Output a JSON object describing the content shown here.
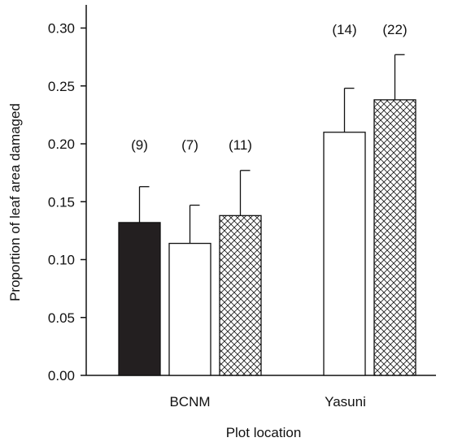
{
  "chart_data": {
    "type": "bar",
    "xlabel": "Plot location",
    "ylabel": "Proportion of leaf area damaged",
    "ylim": [
      0,
      0.32
    ],
    "yticks": [
      "0.00",
      "0.05",
      "0.10",
      "0.15",
      "0.20",
      "0.25",
      "0.30"
    ],
    "categories": [
      "BCNM",
      "Yasuni"
    ],
    "bars": [
      {
        "category": "BCNM",
        "fill": "solid",
        "color": "#231f20",
        "value": 0.132,
        "error": 0.031,
        "n_label": "(9)"
      },
      {
        "category": "BCNM",
        "fill": "open",
        "color": "#ffffff",
        "value": 0.114,
        "error": 0.033,
        "n_label": "(7)"
      },
      {
        "category": "BCNM",
        "fill": "crosshatch",
        "color": "#ffffff",
        "value": 0.138,
        "error": 0.039,
        "n_label": "(11)"
      },
      {
        "category": "Yasuni",
        "fill": "open",
        "color": "#ffffff",
        "value": 0.21,
        "error": 0.038,
        "n_label": "(14)"
      },
      {
        "category": "Yasuni",
        "fill": "crosshatch",
        "color": "#ffffff",
        "value": 0.238,
        "error": 0.039,
        "n_label": "(22)"
      }
    ]
  }
}
